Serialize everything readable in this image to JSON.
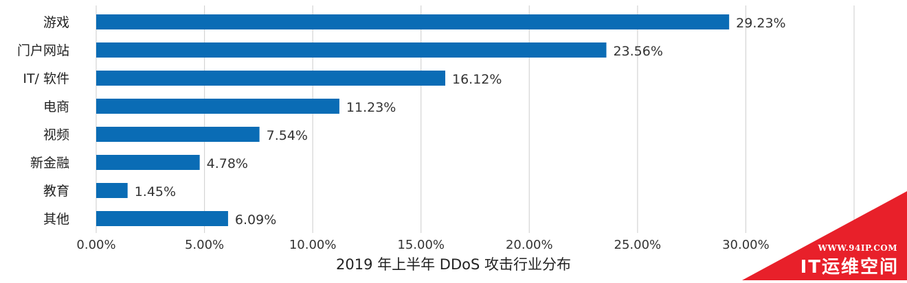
{
  "chart_data": {
    "type": "bar",
    "orientation": "horizontal",
    "categories": [
      "游戏",
      "门户网站",
      "IT/ 软件",
      "电商",
      "视频",
      "新金融",
      "教育",
      "其他"
    ],
    "values": [
      29.23,
      23.56,
      16.12,
      11.23,
      7.54,
      4.78,
      1.45,
      6.09
    ],
    "value_labels": [
      "29.23%",
      "23.56%",
      "16.12%",
      "11.23%",
      "7.54%",
      "4.78%",
      "1.45%",
      "6.09%"
    ],
    "xlim": [
      0,
      35
    ],
    "xticks": [
      0,
      5,
      10,
      15,
      20,
      25,
      30,
      35
    ],
    "xtick_labels": [
      "0.00%",
      "5.00%",
      "10.00%",
      "15.00%",
      "20.00%",
      "25.00%",
      "30.00%",
      ""
    ],
    "xlabel": "2019 年上半年 DDoS 攻击行业分布",
    "grid": true,
    "bar_color": "#0a6cb5",
    "grid_color": "#d4d4d4"
  },
  "watermark": {
    "url": "WWW.94IP.COM",
    "brand": "IT运维空间",
    "color": "#e8202a"
  }
}
